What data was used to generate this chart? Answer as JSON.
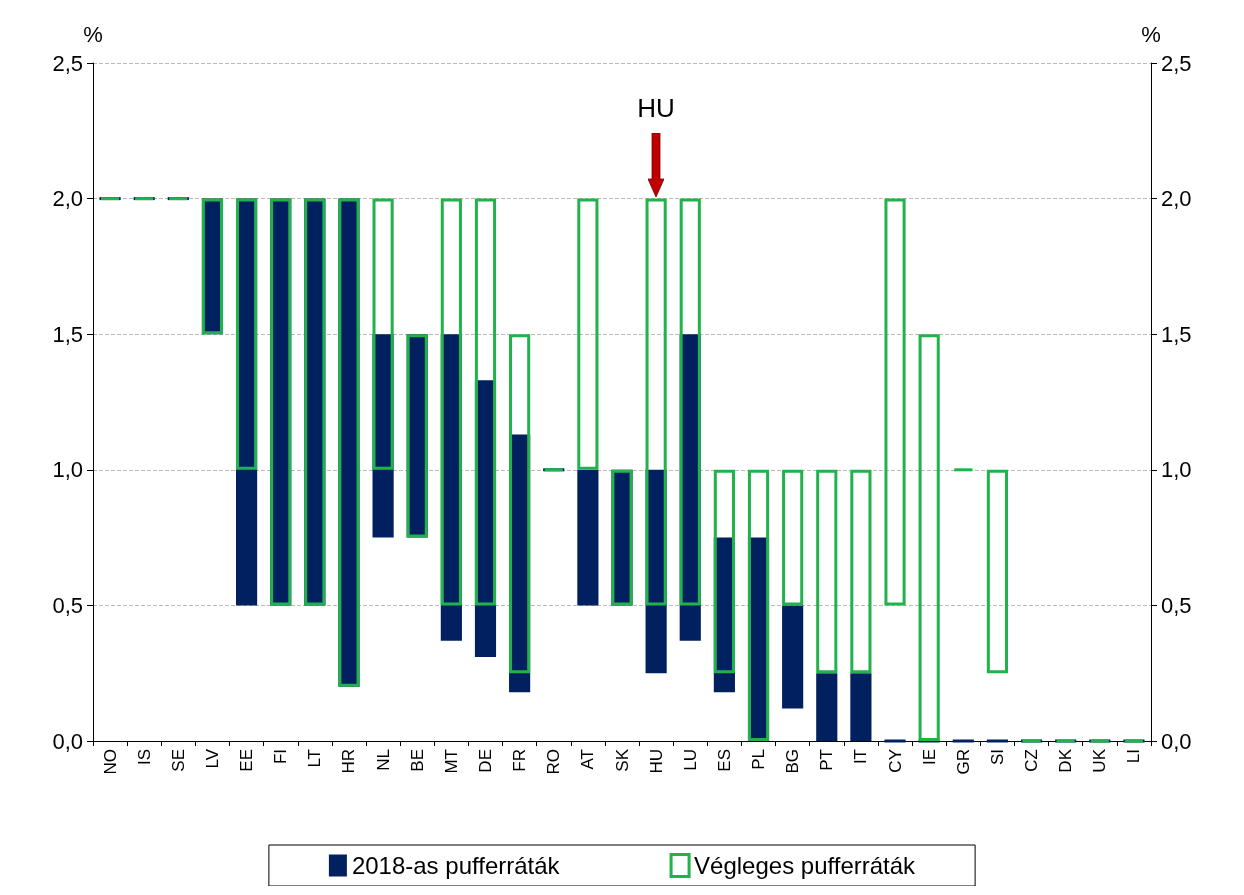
{
  "chart_data": {
    "type": "bar",
    "categories": [
      "NO",
      "IS",
      "SE",
      "LV",
      "EE",
      "FI",
      "LT",
      "HR",
      "NL",
      "BE",
      "MT",
      "DE",
      "FR",
      "RO",
      "AT",
      "SK",
      "HU",
      "LU",
      "ES",
      "PL",
      "BG",
      "PT",
      "IT",
      "CY",
      "IE",
      "GR",
      "SI",
      "CZ",
      "DK",
      "UK",
      "LI"
    ],
    "series": [
      {
        "name": "2018-as pufferráták",
        "color": "#002060",
        "base": [
          2,
          2,
          2,
          1.5,
          0.5,
          0.5,
          0.5,
          0.2,
          0.75,
          0.75,
          0.37,
          0.31,
          0.18,
          1,
          0.5,
          0.5,
          0.25,
          0.37,
          0.18,
          0,
          0.12,
          0,
          0,
          0,
          0,
          0,
          0,
          0,
          0,
          0,
          0
        ],
        "values": [
          0,
          0,
          0,
          0.5,
          1.5,
          1.5,
          1.5,
          1.8,
          0.75,
          0.75,
          1.13,
          1.02,
          0.95,
          0,
          0.5,
          0.5,
          0.75,
          1.13,
          0.57,
          0.75,
          0.38,
          0.25,
          0.25,
          0,
          0,
          0,
          0,
          0,
          0,
          0,
          0
        ]
      },
      {
        "name": "Végleges pufferráták",
        "color": "#22b24c",
        "base": [
          2,
          2,
          2,
          1.5,
          1,
          0.5,
          0.5,
          0.2,
          1,
          0.75,
          0.5,
          0.5,
          0.25,
          1,
          1,
          0.5,
          0.5,
          0.5,
          0.25,
          0,
          0.5,
          0.25,
          0.25,
          0.5,
          0,
          1,
          0.25,
          0,
          0,
          0,
          0
        ],
        "values": [
          0,
          0,
          0,
          0.5,
          1,
          1.5,
          1.5,
          1.8,
          1,
          0.75,
          1.5,
          1.5,
          1.25,
          0,
          1,
          0.5,
          1.5,
          1.5,
          0.75,
          1,
          0.5,
          0.75,
          0.75,
          1.5,
          1.5,
          0,
          0.75,
          0,
          0,
          0,
          0
        ]
      }
    ],
    "ylabel": "%",
    "y2label": "%",
    "ylim": [
      0,
      2.5
    ],
    "yticks": [
      {
        "value": 0,
        "label": "0,0"
      },
      {
        "value": 0.5,
        "label": "0,5"
      },
      {
        "value": 1,
        "label": "1,0"
      },
      {
        "value": 1.5,
        "label": "1,5"
      },
      {
        "value": 2,
        "label": "2,0"
      },
      {
        "value": 2.5,
        "label": "2,5"
      }
    ],
    "y2lim": [
      0,
      2.5
    ],
    "y2ticks": [
      {
        "value": 0,
        "label": "0,0"
      },
      {
        "value": 0.5,
        "label": "0,5"
      },
      {
        "value": 1,
        "label": "1,0"
      },
      {
        "value": 1.5,
        "label": "1,5"
      },
      {
        "value": 2,
        "label": "2,0"
      },
      {
        "value": 2.5,
        "label": "2,5"
      }
    ],
    "grid": "y",
    "legend": "bottom",
    "annotations": [
      {
        "text": "HU",
        "x": "HU",
        "y": 2
      }
    ]
  }
}
